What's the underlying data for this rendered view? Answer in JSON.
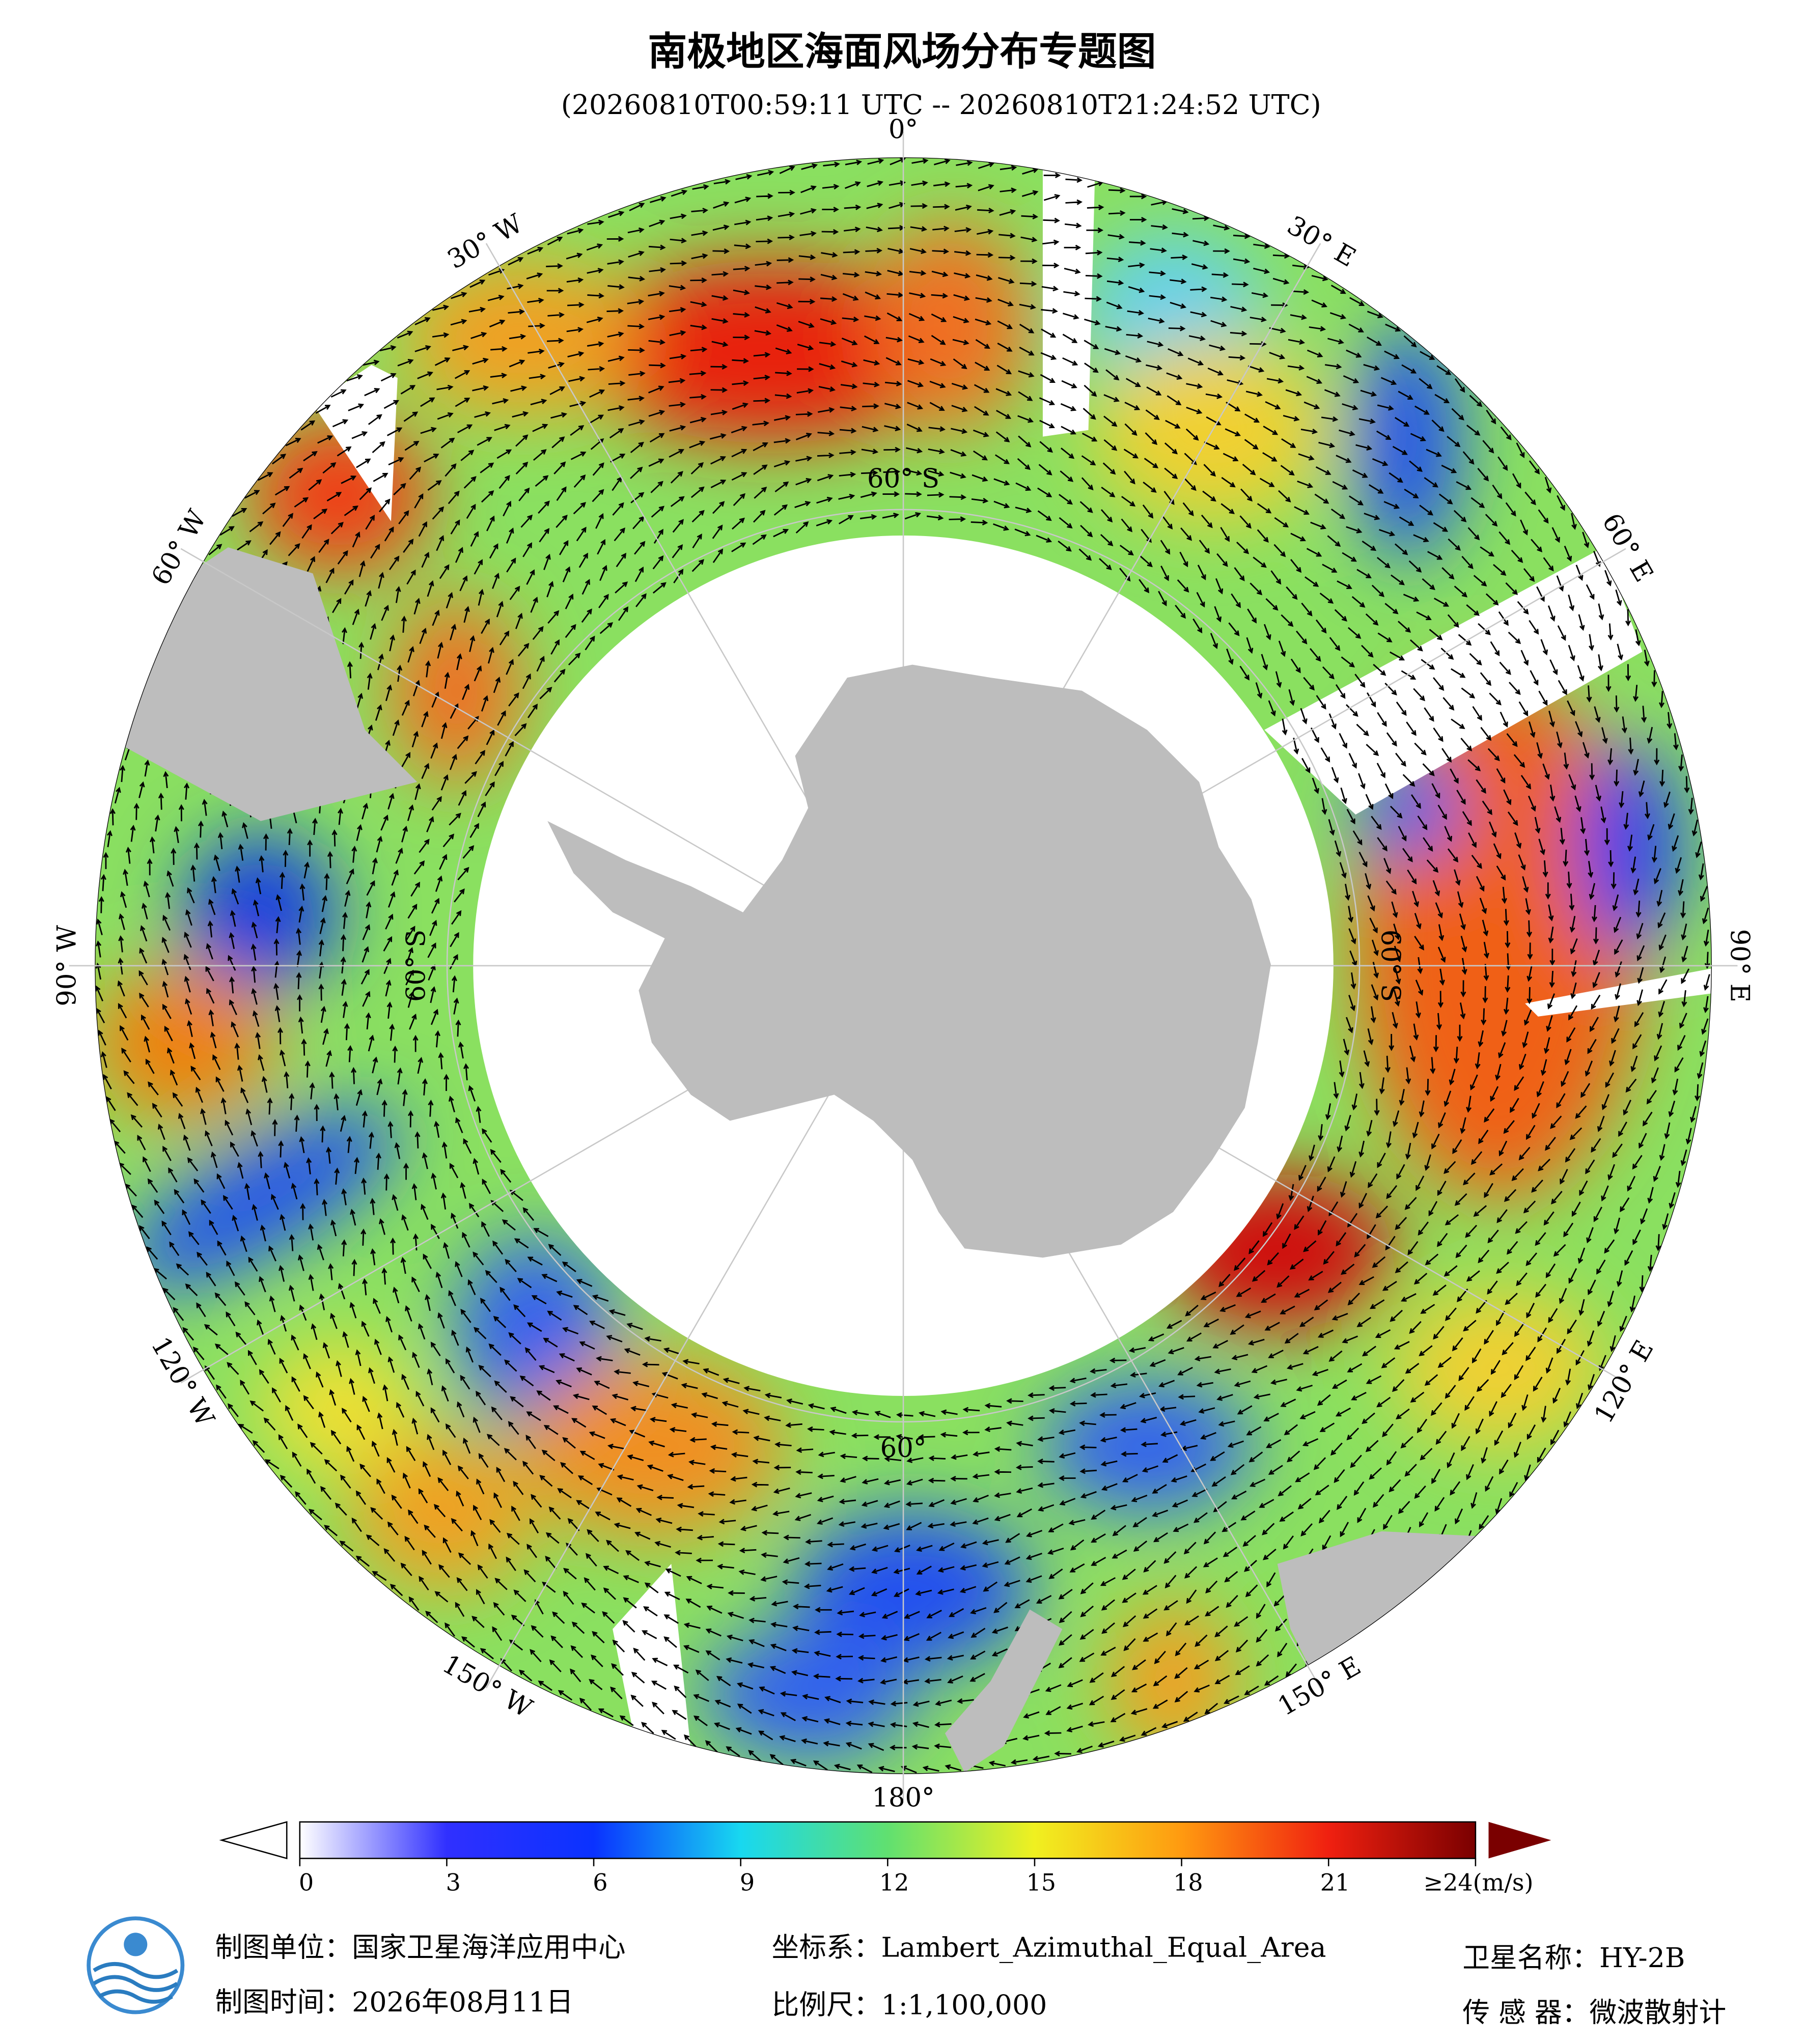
{
  "header": {
    "title": "南极地区海面风场分布专题图",
    "subtitle": "(20260810T00:59:11 UTC -- 20260810T21:24:52 UTC)"
  },
  "graticule": {
    "meridian_labels": [
      "0°",
      "30° E",
      "60° E",
      "90° E",
      "120° E",
      "150° E",
      "180°",
      "150° W",
      "120° W",
      "90° W",
      "60° W",
      "30° W"
    ],
    "ring_labels": [
      "60° S",
      "60° S",
      "60°",
      "60° S"
    ]
  },
  "colorbar": {
    "lim": [
      0,
      24
    ],
    "ticks": [
      0,
      3,
      6,
      9,
      12,
      15,
      18,
      21,
      {
        "value": 24,
        "label": "≥24(m/s)"
      }
    ],
    "colors": [
      "#ffffff",
      "#3030ff",
      "#0a32ff",
      "#18d8f0",
      "#60e070",
      "#f0f020",
      "#ff9a10",
      "#f02010",
      "#7a0000"
    ]
  },
  "footer": {
    "org": "制图单位：国家卫星海洋应用中心",
    "date": "制图时间：2026年08月11日",
    "crs": "坐标系：Lambert_Azimuthal_Equal_Area",
    "scale": "比例尺：1:1,100,000",
    "satellite": "卫星名称：HY-2B",
    "sensor": "传 感 器：微波散射计"
  }
}
